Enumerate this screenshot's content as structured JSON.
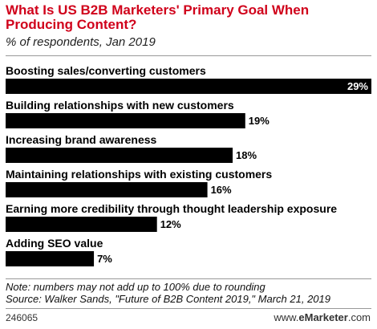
{
  "header": {
    "title": "What Is US B2B Marketers' Primary Goal When Producing Content?",
    "subtitle": "% of respondents, Jan 2019"
  },
  "chart_data": {
    "type": "bar",
    "orientation": "horizontal",
    "categories": [
      "Boosting sales/converting customers",
      "Building relationships with new customers",
      "Increasing brand awareness",
      "Maintaining relationships with existing customers",
      "Earning more credibility through thought leadership exposure",
      "Adding SEO value"
    ],
    "values": [
      29,
      19,
      18,
      16,
      12,
      7
    ],
    "value_labels": [
      "29%",
      "19%",
      "18%",
      "16%",
      "12%",
      "7%"
    ],
    "xlim": [
      0,
      29
    ],
    "bar_color": "#000000",
    "grid": false,
    "title": "What Is US B2B Marketers' Primary Goal When Producing Content?",
    "subtitle": "% of respondents, Jan 2019"
  },
  "footer": {
    "note": "Note: numbers may not add up to 100% due to rounding",
    "source": "Source: Walker Sands, \"Future of B2B Content 2019,\" March 21, 2019",
    "chart_id": "246065",
    "brand_prefix": "www.",
    "brand_name": "eMarketer",
    "brand_suffix": ".com"
  }
}
